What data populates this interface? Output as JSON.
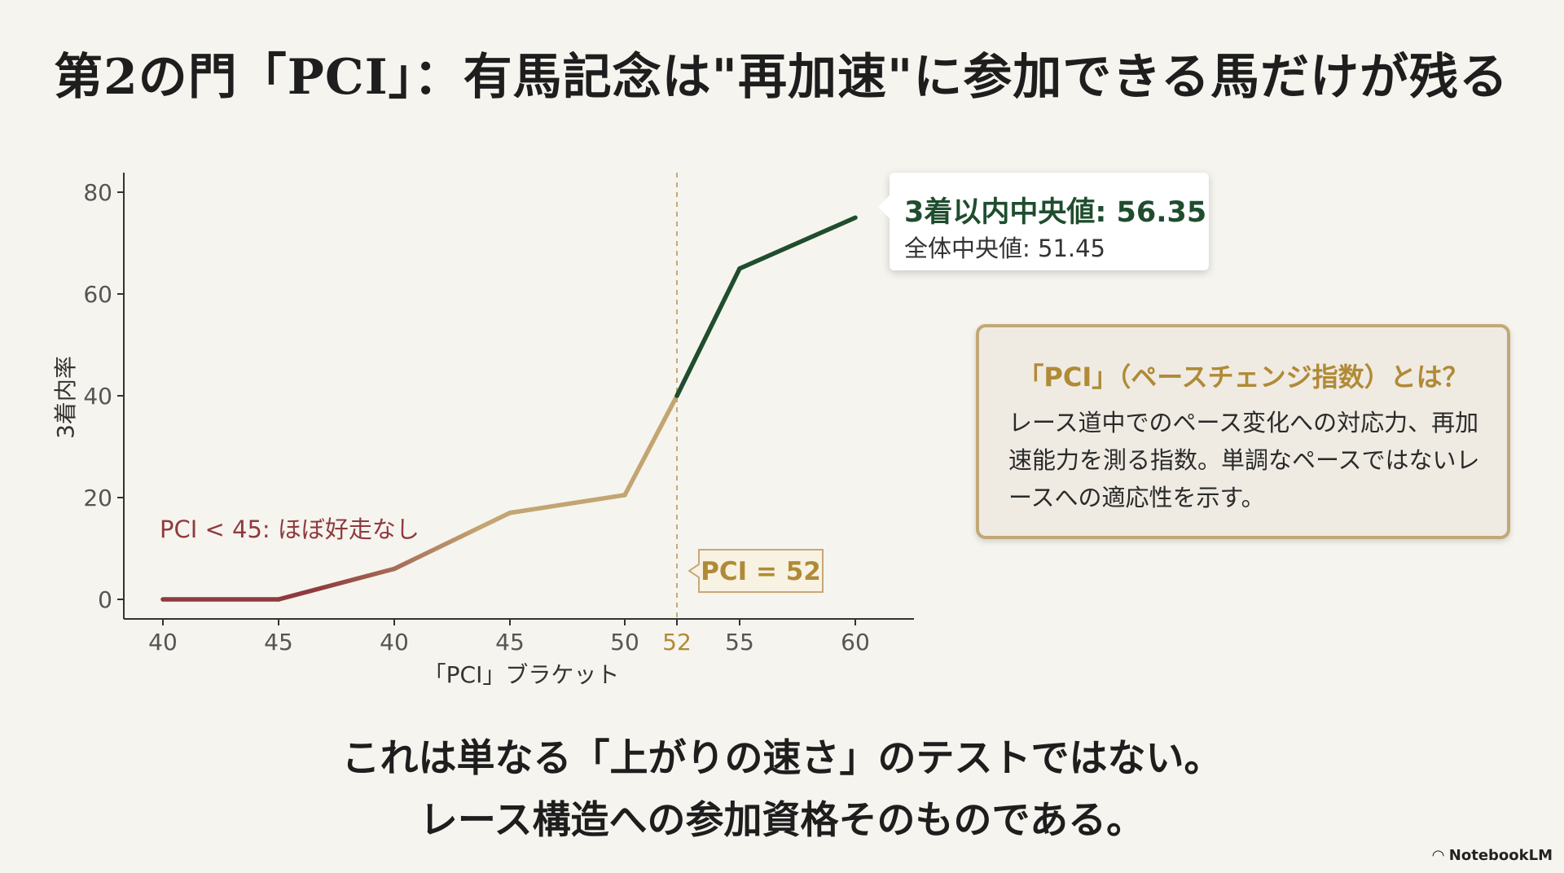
{
  "title": "第2の門「PCI」：有馬記念は\"再加速\"に参加できる馬だけが残る",
  "tooltip": {
    "line1": "3着以内中央値: 56.35",
    "line2": "全体中央値: 51.45"
  },
  "definition": {
    "heading": "「PCI」（ペースチェンジ指数）とは？",
    "body": "レース道中でのペース変化への対応力、再加速能力を測る指数。単調なペースではないレースへの適応性を示す。"
  },
  "bottom": {
    "line1": "これは単なる「上がりの速さ」のテストではない。",
    "line2": "レース構造への参加資格そのものである。"
  },
  "logo": "NotebookLM",
  "chart_data": {
    "type": "line",
    "xlabel": "「PCI」ブラケット",
    "ylabel": "3着内率",
    "categories": [
      "40",
      "45",
      "40",
      "45",
      "50",
      "52",
      "55",
      "60"
    ],
    "values": [
      0,
      0,
      6,
      17,
      20.5,
      40,
      65,
      75
    ],
    "ylim": [
      0,
      80
    ],
    "yticks": [
      0,
      20,
      40,
      60,
      80
    ],
    "threshold": {
      "category": "52",
      "label": "PCI = 52"
    },
    "annotation": "PCI < 45: ほぼ好走なし",
    "colors": {
      "low": "#8e3a3f",
      "mid": "#c2a572",
      "high": "#1f4d2e",
      "axis": "#333333",
      "threshold": "#c7a878"
    },
    "grid": false
  }
}
